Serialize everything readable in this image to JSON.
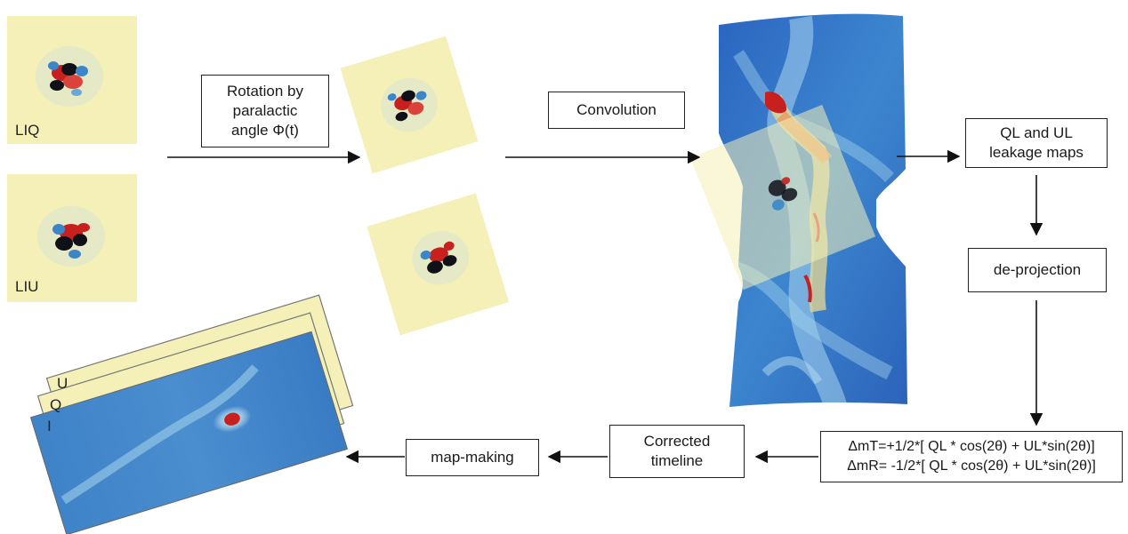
{
  "images": {
    "liq_label": "LIQ",
    "liu_label": "LIU",
    "stack_labels": {
      "u": "U",
      "q": "Q",
      "i": "I"
    }
  },
  "boxes": {
    "rotation": [
      "Rotation by",
      "paralactic",
      "angle Φ(t)"
    ],
    "convolution": "Convolution",
    "leakage": [
      "QL and UL",
      "leakage maps"
    ],
    "deprojection": "de-projection",
    "formula": [
      "ΔmT=+1/2*[ QL * cos(2θ) + UL*sin(2θ)]",
      "ΔmR= -1/2*[ QL * cos(2θ) + UL*sin(2θ)]"
    ],
    "corrected": [
      "Corrected",
      "timeline"
    ],
    "mapmaking": "map-making"
  },
  "colors": {
    "leakage_background": "#f4f0b8",
    "sky_blue": "#2e6fc4",
    "hot_red": "#c8201e",
    "cold_black": "#101018"
  }
}
